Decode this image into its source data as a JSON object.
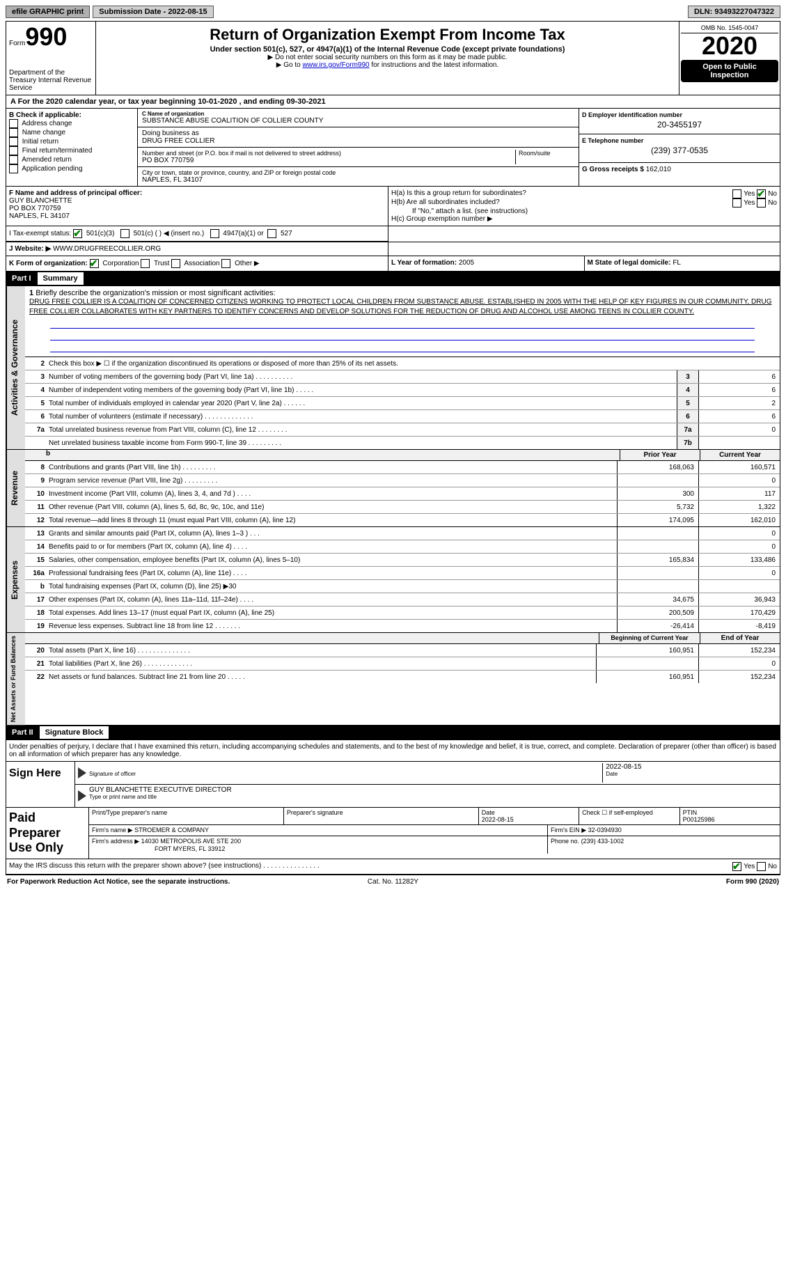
{
  "topbar": {
    "efile": "efile GRAPHIC print",
    "sub_label": "Submission Date - 2022-08-15",
    "dln": "DLN: 93493227047322"
  },
  "header": {
    "form_label": "Form",
    "form_number": "990",
    "dept": "Department of the Treasury\nInternal Revenue Service",
    "title": "Return of Organization Exempt From Income Tax",
    "subtitle": "Under section 501(c), 527, or 4947(a)(1) of the Internal Revenue Code (except private foundations)",
    "note1": "▶ Do not enter social security numbers on this form as it may be made public.",
    "note2_pre": "▶ Go to ",
    "note2_link": "www.irs.gov/Form990",
    "note2_post": " for instructions and the latest information.",
    "omb": "OMB No. 1545-0047",
    "year": "2020",
    "open": "Open to Public Inspection"
  },
  "row_a": {
    "text": "A For the 2020 calendar year, or tax year beginning 10-01-2020    , and ending 09-30-2021"
  },
  "col_b": {
    "label": "B Check if applicable:",
    "items": [
      "Address change",
      "Name change",
      "Initial return",
      "Final return/terminated",
      "Amended return",
      "Application pending"
    ]
  },
  "col_c": {
    "name_lbl": "C Name of organization",
    "name": "SUBSTANCE ABUSE COALITION OF COLLIER COUNTY",
    "dba_lbl": "Doing business as",
    "dba": "DRUG FREE COLLIER",
    "addr_lbl": "Number and street (or P.O. box if mail is not delivered to street address)",
    "room_lbl": "Room/suite",
    "addr": "PO BOX 770759",
    "city_lbl": "City or town, state or province, country, and ZIP or foreign postal code",
    "city": "NAPLES, FL  34107"
  },
  "col_d": {
    "d_lbl": "D Employer identification number",
    "d_val": "20-3455197",
    "e_lbl": "E Telephone number",
    "e_val": "(239) 377-0535",
    "g_lbl": "G Gross receipts $ ",
    "g_val": "162,010"
  },
  "f": {
    "lbl": "F Name and address of principal officer:",
    "name": "GUY BLANCHETTE",
    "addr1": "PO BOX 770759",
    "addr2": "NAPLES, FL  34107"
  },
  "h": {
    "a": "H(a) Is this a group return for subordinates?",
    "b": "H(b) Are all subordinates included?",
    "b_note": "If \"No,\" attach a list. (see instructions)",
    "c": "H(c) Group exemption number ▶"
  },
  "i": {
    "lbl": "I    Tax-exempt status:",
    "opt1": "501(c)(3)",
    "opt2": "501(c) (    ) ◀ (insert no.)",
    "opt3": "4947(a)(1) or",
    "opt4": "527"
  },
  "j": {
    "lbl": "J    Website: ▶",
    "val": "WWW.DRUGFREECOLLIER.ORG"
  },
  "k": {
    "lbl": "K Form of organization:",
    "o1": "Corporation",
    "o2": "Trust",
    "o3": "Association",
    "o4": "Other ▶"
  },
  "l": {
    "lbl": "L Year of formation: ",
    "val": "2005",
    "m_lbl": "M State of legal domicile: ",
    "m_val": "FL"
  },
  "part1": {
    "hdr": "Part I",
    "title": "Summary"
  },
  "mission": {
    "num": "1",
    "lbl": "Briefly describe the organization's mission or most significant activities:",
    "text": "DRUG FREE COLLIER IS A COALITION OF CONCERNED CITIZENS WORKING TO PROTECT LOCAL CHILDREN FROM SUBSTANCE ABUSE. ESTABLISHED IN 2005 WITH THE HELP OF KEY FIGURES IN OUR COMMUNITY, DRUG FREE COLLIER COLLABORATES WITH KEY PARTNERS TO IDENTIFY CONCERNS AND DEVELOP SOLUTIONS FOR THE REDUCTION OF DRUG AND ALCOHOL USE AMONG TEENS IN COLLIER COUNTY."
  },
  "gov_lines": [
    {
      "n": "2",
      "t": "Check this box ▶ ☐ if the organization discontinued its operations or disposed of more than 25% of its net assets."
    },
    {
      "n": "3",
      "t": "Number of voting members of the governing body (Part VI, line 1a)    .    .    .    .    .    .    .    .    .    .",
      "box": "3",
      "v": "6"
    },
    {
      "n": "4",
      "t": "Number of independent voting members of the governing body (Part VI, line 1b)    .    .    .    .    .",
      "box": "4",
      "v": "6"
    },
    {
      "n": "5",
      "t": "Total number of individuals employed in calendar year 2020 (Part V, line 2a)    .    .    .    .    .    .",
      "box": "5",
      "v": "2"
    },
    {
      "n": "6",
      "t": "Total number of volunteers (estimate if necessary)    .    .    .    .    .    .    .    .    .    .    .    .    .",
      "box": "6",
      "v": "6"
    },
    {
      "n": "7a",
      "t": "Total unrelated business revenue from Part VIII, column (C), line 12    .    .    .    .    .    .    .    .",
      "box": "7a",
      "v": "0"
    },
    {
      "n": "",
      "t": "Net unrelated business taxable income from Form 990-T, line 39    .    .    .    .    .    .    .    .    .",
      "box": "7b",
      "v": ""
    }
  ],
  "year_hdr": {
    "prior": "Prior Year",
    "current": "Current Year"
  },
  "revenue": [
    {
      "n": "8",
      "t": "Contributions and grants (Part VIII, line 1h)   .   .   .   .   .   .   .   .   .",
      "p": "168,063",
      "c": "160,571"
    },
    {
      "n": "9",
      "t": "Program service revenue (Part VIII, line 2g)   .   .   .   .   .   .   .   .   .",
      "p": "",
      "c": "0"
    },
    {
      "n": "10",
      "t": "Investment income (Part VIII, column (A), lines 3, 4, and 7d )   .   .   .   .",
      "p": "300",
      "c": "117"
    },
    {
      "n": "11",
      "t": "Other revenue (Part VIII, column (A), lines 5, 6d, 8c, 9c, 10c, and 11e)",
      "p": "5,732",
      "c": "1,322"
    },
    {
      "n": "12",
      "t": "Total revenue—add lines 8 through 11 (must equal Part VIII, column (A), line 12)",
      "p": "174,095",
      "c": "162,010"
    }
  ],
  "expenses": [
    {
      "n": "13",
      "t": "Grants and similar amounts paid (Part IX, column (A), lines 1–3 )   .   .   .",
      "p": "",
      "c": "0"
    },
    {
      "n": "14",
      "t": "Benefits paid to or for members (Part IX, column (A), line 4)   .   .   .   .",
      "p": "",
      "c": "0"
    },
    {
      "n": "15",
      "t": "Salaries, other compensation, employee benefits (Part IX, column (A), lines 5–10)",
      "p": "165,834",
      "c": "133,486"
    },
    {
      "n": "16a",
      "t": "Professional fundraising fees (Part IX, column (A), line 11e)   .   .   .   .",
      "p": "",
      "c": "0"
    },
    {
      "n": "b",
      "t": "Total fundraising expenses (Part IX, column (D), line 25) ▶30",
      "p": "",
      "c": ""
    },
    {
      "n": "17",
      "t": "Other expenses (Part IX, column (A), lines 11a–11d, 11f–24e)   .   .   .   .",
      "p": "34,675",
      "c": "36,943"
    },
    {
      "n": "18",
      "t": "Total expenses. Add lines 13–17 (must equal Part IX, column (A), line 25)",
      "p": "200,509",
      "c": "170,429"
    },
    {
      "n": "19",
      "t": "Revenue less expenses. Subtract line 18 from line 12   .   .   .   .   .   .   .",
      "p": "-26,414",
      "c": "-8,419"
    }
  ],
  "net_hdr": {
    "p": "Beginning of Current Year",
    "c": "End of Year"
  },
  "net": [
    {
      "n": "20",
      "t": "Total assets (Part X, line 16)   .   .   .   .   .   .   .   .   .   .   .   .   .   .",
      "p": "160,951",
      "c": "152,234"
    },
    {
      "n": "21",
      "t": "Total liabilities (Part X, line 26)   .   .   .   .   .   .   .   .   .   .   .   .   .",
      "p": "",
      "c": "0"
    },
    {
      "n": "22",
      "t": "Net assets or fund balances. Subtract line 21 from line 20   .   .   .   .   .",
      "p": "160,951",
      "c": "152,234"
    }
  ],
  "part2": {
    "hdr": "Part II",
    "title": "Signature Block"
  },
  "sig_text": "Under penalties of perjury, I declare that I have examined this return, including accompanying schedules and statements, and to the best of my knowledge and belief, it is true, correct, and complete. Declaration of preparer (other than officer) is based on all information of which preparer has any knowledge.",
  "sign": {
    "label": "Sign Here",
    "date": "2022-08-15",
    "sig_lbl": "Signature of officer",
    "date_lbl": "Date",
    "name": "GUY BLANCHETTE EXECUTIVE DIRECTOR",
    "name_lbl": "Type or print name and title"
  },
  "paid": {
    "label": "Paid Preparer Use Only",
    "h1": "Print/Type preparer's name",
    "h2": "Preparer's signature",
    "h3": "Date",
    "h3v": "2022-08-15",
    "h4": "Check ☐ if self-employed",
    "h5": "PTIN",
    "h5v": "P00125986",
    "firm_lbl": "Firm's name    ▶",
    "firm": "STROEMER & COMPANY",
    "ein_lbl": "Firm's EIN ▶",
    "ein": "32-0394930",
    "addr_lbl": "Firm's address ▶",
    "addr": "14030 METROPOLIS AVE STE 200",
    "addr2": "FORT MYERS, FL  33912",
    "phone_lbl": "Phone no.",
    "phone": "(239) 433-1002"
  },
  "discuss": "May the IRS discuss this return with the preparer shown above? (see instructions)   .   .   .   .   .   .   .   .   .   .   .   .   .   .   .",
  "footer": {
    "l": "For Paperwork Reduction Act Notice, see the separate instructions.",
    "c": "Cat. No. 11282Y",
    "r": "Form 990 (2020)"
  },
  "vtabs": {
    "gov": "Activities & Governance",
    "rev": "Revenue",
    "exp": "Expenses",
    "net": "Net Assets or Fund Balances"
  }
}
